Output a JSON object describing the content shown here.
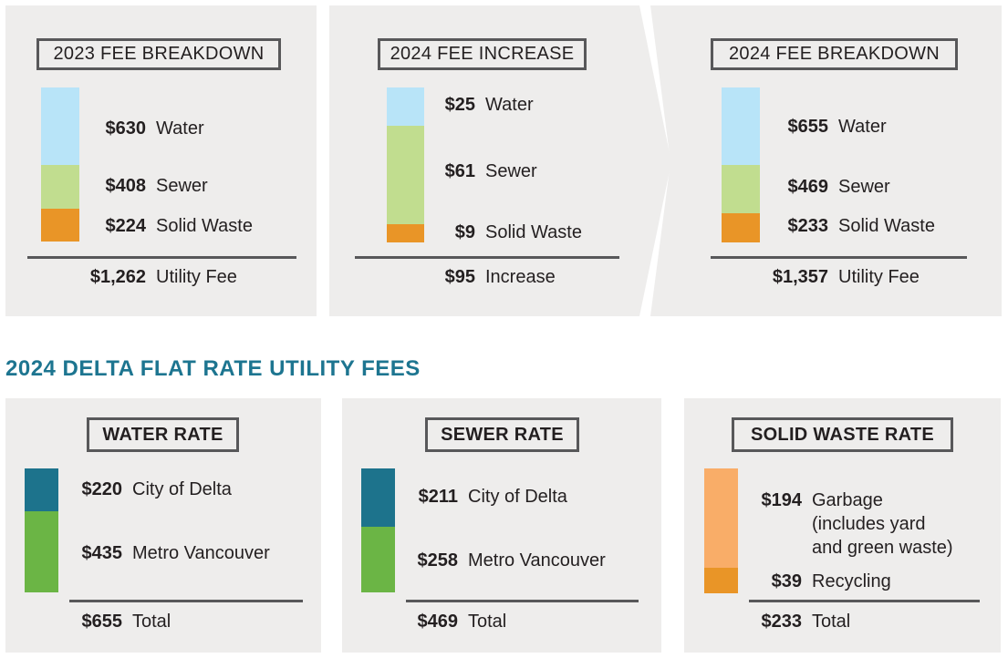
{
  "heading": "2024 DELTA FLAT RATE UTILITY FEES",
  "colors": {
    "water": "#b8e4f8",
    "sewer": "#c1dd8f",
    "solid_waste": "#e99527",
    "city": "#1d738c",
    "metro": "#6bb545",
    "garbage": "#f9ad68",
    "recycling": "#e99527",
    "heading": "#1d7590"
  },
  "chart_data": [
    {
      "type": "bar",
      "stacked": true,
      "title": "2023 FEE BREAKDOWN",
      "series": [
        {
          "name": "Water",
          "value": 630,
          "label": "$630"
        },
        {
          "name": "Sewer",
          "value": 408,
          "label": "$408"
        },
        {
          "name": "Solid Waste",
          "value": 224,
          "label": "$224"
        }
      ],
      "total": {
        "value": 1262,
        "label": "$1,262",
        "name": "Utility Fee"
      }
    },
    {
      "type": "bar",
      "stacked": true,
      "title": "2024 FEE INCREASE",
      "series": [
        {
          "name": "Water",
          "value": 25,
          "label": "$25"
        },
        {
          "name": "Sewer",
          "value": 61,
          "label": "$61"
        },
        {
          "name": "Solid Waste",
          "value": 9,
          "label": "$9"
        }
      ],
      "total": {
        "value": 95,
        "label": "$95",
        "name": "Increase"
      }
    },
    {
      "type": "bar",
      "stacked": true,
      "title": "2024 FEE BREAKDOWN",
      "series": [
        {
          "name": "Water",
          "value": 655,
          "label": "$655"
        },
        {
          "name": "Sewer",
          "value": 469,
          "label": "$469"
        },
        {
          "name": "Solid Waste",
          "value": 233,
          "label": "$233"
        }
      ],
      "total": {
        "value": 1357,
        "label": "$1,357",
        "name": "Utility Fee"
      }
    },
    {
      "type": "bar",
      "stacked": true,
      "title": "WATER RATE",
      "series": [
        {
          "name": "City of Delta",
          "value": 220,
          "label": "$220"
        },
        {
          "name": "Metro Vancouver",
          "value": 435,
          "label": "$435"
        }
      ],
      "total": {
        "value": 655,
        "label": "$655",
        "name": "Total"
      }
    },
    {
      "type": "bar",
      "stacked": true,
      "title": "SEWER RATE",
      "series": [
        {
          "name": "City of Delta",
          "value": 211,
          "label": "$211"
        },
        {
          "name": "Metro Vancouver",
          "value": 258,
          "label": "$258"
        }
      ],
      "total": {
        "value": 469,
        "label": "$469",
        "name": "Total"
      }
    },
    {
      "type": "bar",
      "stacked": true,
      "title": "SOLID WASTE RATE",
      "series": [
        {
          "name": "Garbage (includes yard and green waste)",
          "lines": [
            "Garbage",
            "(includes yard",
            "and green waste)"
          ],
          "value": 194,
          "label": "$194"
        },
        {
          "name": "Recycling",
          "value": 39,
          "label": "$39"
        }
      ],
      "total": {
        "value": 233,
        "label": "$233",
        "name": "Total"
      }
    }
  ]
}
